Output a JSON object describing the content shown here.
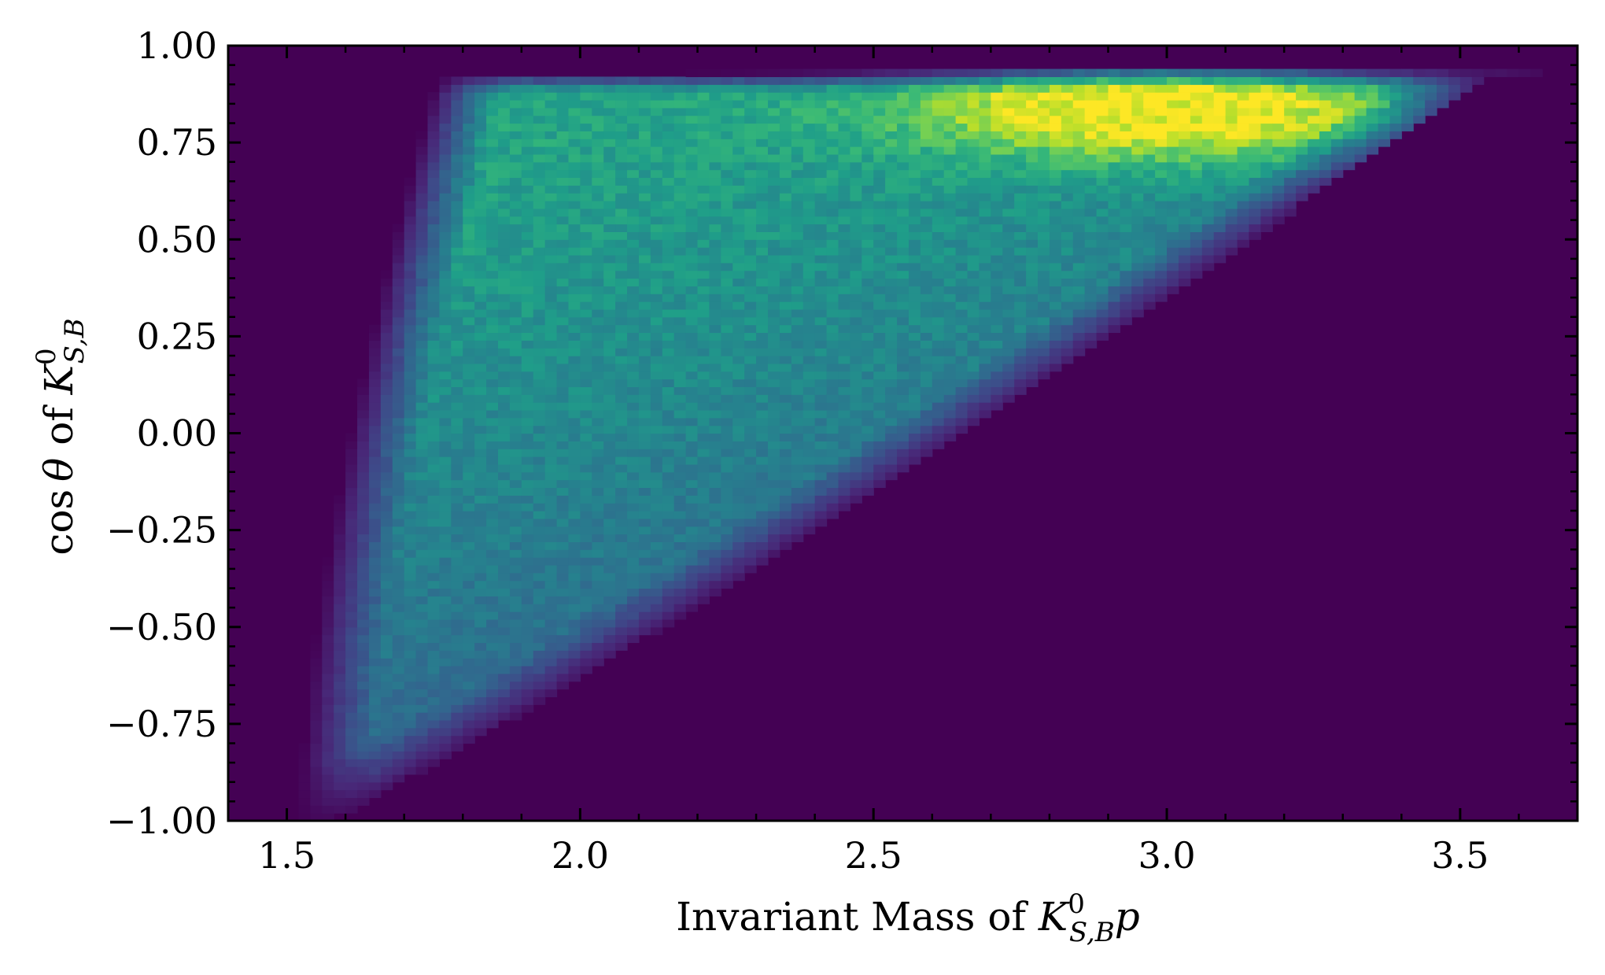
{
  "chart_data": {
    "type": "heatmap",
    "title": "",
    "xlabel": "Invariant Mass of K⁰S,B p",
    "xlabel_parts": {
      "prefix": "Invariant Mass of ",
      "symbol": "K",
      "superscript": "0",
      "subscript": "S,B",
      "suffix": "p"
    },
    "ylabel": "cos θ of K⁰S,B",
    "ylabel_parts": {
      "prefix": "cos ",
      "theta": "θ",
      "middle": " of ",
      "symbol": "K",
      "superscript": "0",
      "subscript": "S,B"
    },
    "xlim": [
      1.4,
      3.7
    ],
    "ylim": [
      -1.0,
      1.0
    ],
    "x_ticks": [
      1.5,
      2.0,
      2.5,
      3.0,
      3.5
    ],
    "x_tick_labels": [
      "1.5",
      "2.0",
      "2.5",
      "3.0",
      "3.5"
    ],
    "y_ticks": [
      -1.0,
      -0.75,
      -0.5,
      -0.25,
      0.0,
      0.25,
      0.5,
      0.75,
      1.0
    ],
    "y_tick_labels": [
      "−1.00",
      "−0.75",
      "−0.50",
      "−0.25",
      "0.00",
      "0.25",
      "0.50",
      "0.75",
      "1.00"
    ],
    "colormap": "viridis",
    "colormap_stops": [
      "#440154",
      "#482878",
      "#3e4a89",
      "#31688e",
      "#26828e",
      "#1f9e89",
      "#35b779",
      "#6ece58",
      "#b5de2b",
      "#fde725"
    ],
    "background_color": "#440154",
    "peak_location": {
      "x": 3.0,
      "y": 0.85
    },
    "grid": false,
    "legend": "none",
    "colorbar": "none"
  }
}
